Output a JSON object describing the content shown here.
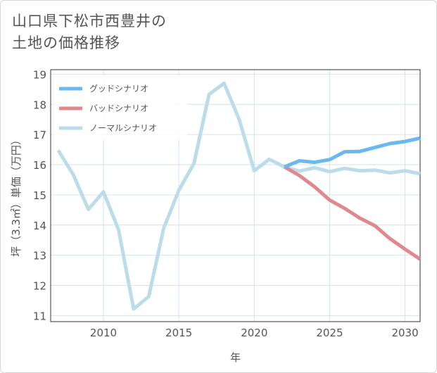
{
  "title_line1": "山口県下松市西豊井の",
  "title_line2": "土地の価格推移",
  "chart_data": {
    "type": "line",
    "xlabel": "年",
    "ylabel": "坪（3.3㎡）単価（万円）",
    "xlim": [
      2006.5,
      2031
    ],
    "ylim": [
      10.8,
      19.15
    ],
    "x_ticks": [
      2010,
      2015,
      2020,
      2025,
      2030
    ],
    "y_ticks": [
      11,
      12,
      13,
      14,
      15,
      16,
      17,
      18,
      19
    ],
    "grid": true,
    "legend_position": "top-left",
    "series": [
      {
        "name": "グッドシナリオ",
        "color": "#6bb8f0",
        "x": [
          2022,
          2023,
          2024,
          2025,
          2026,
          2027,
          2028,
          2029,
          2030,
          2031
        ],
        "values": [
          15.93,
          16.13,
          16.08,
          16.17,
          16.43,
          16.44,
          16.57,
          16.7,
          16.77,
          16.88
        ]
      },
      {
        "name": "バッドシナリオ",
        "color": "#e0888e",
        "x": [
          2022,
          2023,
          2024,
          2025,
          2026,
          2027,
          2028,
          2029,
          2030,
          2031
        ],
        "values": [
          15.93,
          15.64,
          15.27,
          14.83,
          14.55,
          14.23,
          13.98,
          13.55,
          13.2,
          12.87
        ]
      },
      {
        "name": "ノーマルシナリオ",
        "color": "#bcdcea",
        "x": [
          2007,
          2008,
          2009,
          2010,
          2011,
          2012,
          2013,
          2014,
          2015,
          2016,
          2017,
          2018,
          2019,
          2020,
          2021,
          2022,
          2023,
          2024,
          2025,
          2026,
          2027,
          2028,
          2029,
          2030,
          2031
        ],
        "values": [
          16.48,
          15.67,
          14.52,
          15.1,
          13.85,
          11.22,
          11.63,
          13.9,
          15.15,
          16.04,
          18.33,
          18.7,
          17.5,
          15.8,
          16.18,
          15.93,
          15.79,
          15.9,
          15.77,
          15.88,
          15.8,
          15.82,
          15.73,
          15.8,
          15.7
        ]
      }
    ]
  }
}
